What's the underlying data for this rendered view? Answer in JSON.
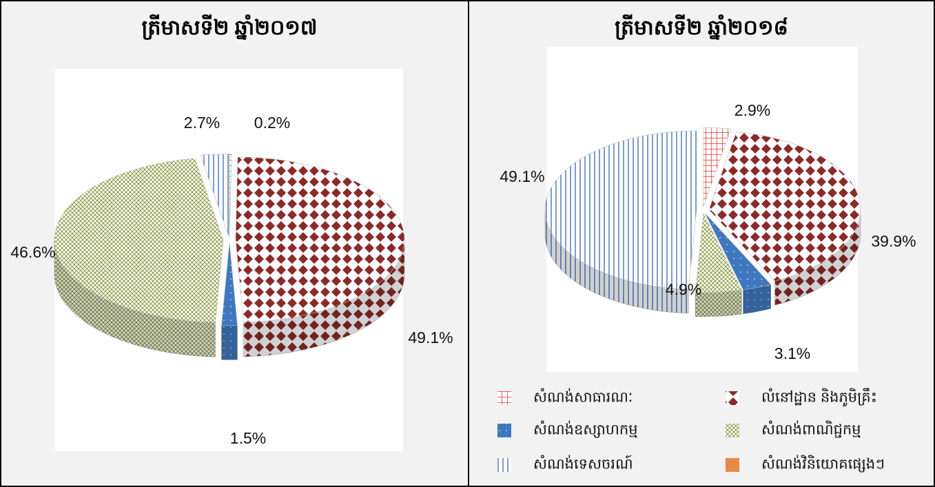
{
  "chart_data": [
    {
      "type": "pie",
      "title": "ត្រីមាសទី២ ឆ្នាំ២០១៧",
      "values": [
        0.2,
        49.1,
        1.5,
        46.6,
        2.7,
        null
      ],
      "value_labels": [
        "0.2%",
        "49.1%",
        "1.5%",
        "46.6%",
        "2.7%",
        null
      ]
    },
    {
      "type": "pie",
      "title": "ត្រីមាសទី២ ឆ្នាំ២០១៨",
      "values": [
        2.9,
        39.9,
        3.1,
        4.9,
        49.1,
        null
      ],
      "value_labels": [
        "2.9%",
        "39.9%",
        "3.1%",
        "4.9%",
        "49.1%",
        null
      ]
    }
  ],
  "legend": {
    "categories": [
      "សំណង់សាធារណៈ",
      "លំនៅដ្ឋាន និងភូមិគ្រឹះ",
      "សំណង់ឧស្សាហកម្ម",
      "សំណង់ពាណិជ្ជកម្ម",
      "សំណង់ទេសចរណ៍",
      "សំណង់វិនិយោគផ្សេងៗ"
    ],
    "colors": [
      "#e03030",
      "#8b2a2a",
      "#3f78bf",
      "#8a9a40",
      "#5a86c0",
      "#e68a45"
    ]
  }
}
